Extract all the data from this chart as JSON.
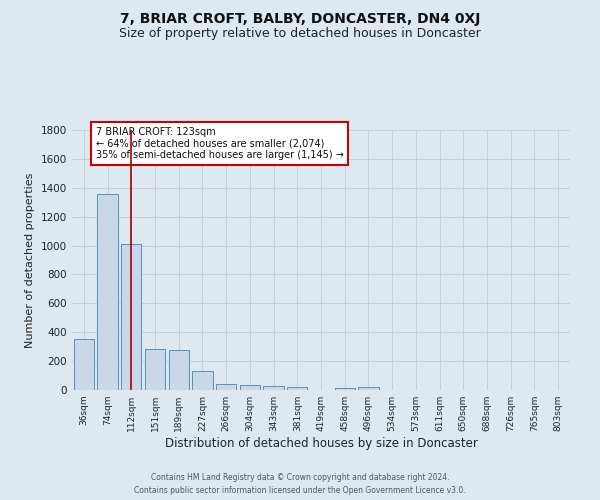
{
  "title": "7, BRIAR CROFT, BALBY, DONCASTER, DN4 0XJ",
  "subtitle": "Size of property relative to detached houses in Doncaster",
  "xlabel": "Distribution of detached houses by size in Doncaster",
  "ylabel": "Number of detached properties",
  "footer_line1": "Contains HM Land Registry data © Crown copyright and database right 2024.",
  "footer_line2": "Contains public sector information licensed under the Open Government Licence v3.0.",
  "bar_labels": [
    "36sqm",
    "74sqm",
    "112sqm",
    "151sqm",
    "189sqm",
    "227sqm",
    "266sqm",
    "304sqm",
    "343sqm",
    "381sqm",
    "419sqm",
    "458sqm",
    "496sqm",
    "534sqm",
    "573sqm",
    "611sqm",
    "650sqm",
    "688sqm",
    "726sqm",
    "765sqm",
    "803sqm"
  ],
  "bar_values": [
    355,
    1355,
    1010,
    285,
    280,
    130,
    45,
    35,
    25,
    18,
    0,
    14,
    20,
    0,
    0,
    0,
    0,
    0,
    0,
    0,
    0
  ],
  "bar_color": "#c8d8e8",
  "bar_edge_color": "#5b8db8",
  "ylim": [
    0,
    1800
  ],
  "yticks": [
    0,
    200,
    400,
    600,
    800,
    1000,
    1200,
    1400,
    1600,
    1800
  ],
  "property_line_x": 2,
  "property_line_color": "#aa0000",
  "annotation_text": "7 BRIAR CROFT: 123sqm\n← 64% of detached houses are smaller (2,074)\n35% of semi-detached houses are larger (1,145) →",
  "annotation_box_facecolor": "#ffffff",
  "annotation_box_edgecolor": "#cc0000",
  "bg_color": "#dde8f0",
  "grid_color": "#c0ccd8",
  "title_fontsize": 10,
  "subtitle_fontsize": 9,
  "footer_fontsize": 5.5,
  "ylabel_fontsize": 8,
  "xlabel_fontsize": 8.5
}
